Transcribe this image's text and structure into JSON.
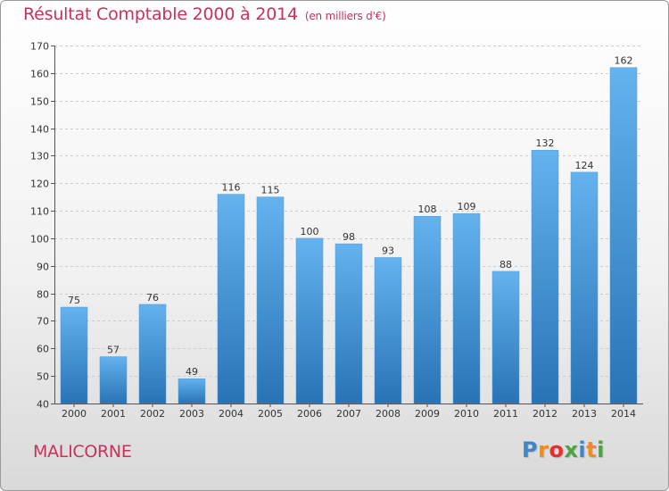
{
  "chart_data": {
    "type": "bar",
    "title": "Résultat Comptable 2000 à 2014",
    "subtitle": "(en milliers d'€)",
    "categories": [
      "2000",
      "2001",
      "2002",
      "2003",
      "2004",
      "2005",
      "2006",
      "2007",
      "2008",
      "2009",
      "2010",
      "2011",
      "2012",
      "2013",
      "2014"
    ],
    "values": [
      75,
      57,
      76,
      49,
      116,
      115,
      100,
      98,
      93,
      108,
      109,
      88,
      132,
      124,
      162
    ],
    "ylim": [
      40,
      170
    ],
    "yticks": [
      40,
      50,
      60,
      70,
      80,
      90,
      100,
      110,
      120,
      130,
      140,
      150,
      160,
      170
    ],
    "xlabel": "",
    "ylabel": "",
    "grid": true
  },
  "commune": "MALICORNE",
  "logo": {
    "letters": [
      "P",
      "r",
      "o",
      "x",
      "i",
      "t",
      "i"
    ],
    "colors": [
      "#3f86c8",
      "#f08a1c",
      "#e3302f",
      "#4aa540",
      "#3f86c8",
      "#f08a1c",
      "#4aa540"
    ]
  },
  "colors": {
    "bar_light": "#64b2ee",
    "bar_dark": "#2873b6",
    "title": "#c7325a",
    "grid": "#cccccc"
  }
}
